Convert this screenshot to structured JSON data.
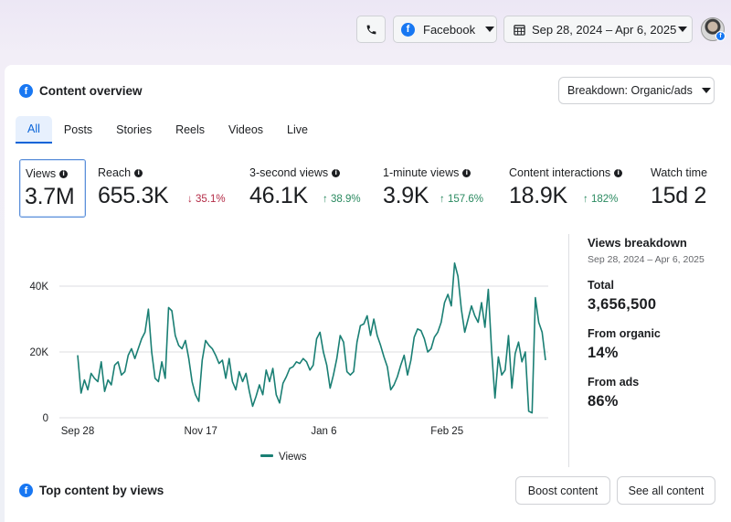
{
  "topbar": {
    "platform_label": "Facebook",
    "date_range": "Sep 28, 2024 – Apr 6, 2025",
    "icons": [
      "phone-icon",
      "facebook-icon",
      "calendar-icon",
      "caret-down-icon",
      "avatar"
    ]
  },
  "overview": {
    "title": "Content overview",
    "breakdown_label": "Breakdown: Organic/ads"
  },
  "tabs": [
    {
      "label": "All",
      "active": true
    },
    {
      "label": "Posts"
    },
    {
      "label": "Stories"
    },
    {
      "label": "Reels"
    },
    {
      "label": "Videos"
    },
    {
      "label": "Live"
    }
  ],
  "metrics": [
    {
      "label": "Views",
      "value": "3.7M",
      "change": "",
      "selected": true
    },
    {
      "label": "Reach",
      "value": "655.3K",
      "change": "35.1%",
      "direction": "down"
    },
    {
      "label": "3-second views",
      "value": "46.1K",
      "change": "38.9%",
      "direction": "up"
    },
    {
      "label": "1-minute views",
      "value": "3.9K",
      "change": "157.6%",
      "direction": "up"
    },
    {
      "label": "Content interactions",
      "value": "18.9K",
      "change": "182%",
      "direction": "up"
    },
    {
      "label": "Watch time",
      "value": "15d 2",
      "change": ""
    }
  ],
  "chart_data": {
    "type": "line",
    "title": "",
    "xlabel": "",
    "ylabel": "",
    "x_tick_labels": [
      "Sep 28",
      "Nov 17",
      "Jan 6",
      "Feb 25"
    ],
    "y_tick_labels": [
      "0",
      "20K",
      "40K"
    ],
    "ylim": [
      0,
      50000
    ],
    "grid": "horizontal",
    "legend": "bottom-center",
    "series": [
      {
        "name": "Views",
        "color": "#1a7f74",
        "x_start": "2024-09-28",
        "x_end": "2025-04-06",
        "values": [
          19000,
          7500,
          11500,
          8500,
          13500,
          12000,
          11000,
          17000,
          8000,
          11500,
          10000,
          16000,
          17000,
          13000,
          14000,
          19000,
          21000,
          18000,
          21000,
          24000,
          26000,
          33000,
          20000,
          12000,
          11000,
          17000,
          12000,
          33500,
          32500,
          25000,
          22000,
          21000,
          23500,
          18000,
          11000,
          7000,
          5000,
          17500,
          23500,
          22000,
          21000,
          19000,
          16500,
          17500,
          12000,
          18000,
          11000,
          8500,
          14000,
          11000,
          13500,
          8000,
          3500,
          6500,
          10000,
          7000,
          14500,
          11000,
          15000,
          7000,
          4500,
          10500,
          12500,
          15000,
          15500,
          17000,
          16500,
          18000,
          17000,
          14500,
          16000,
          24000,
          26000,
          20000,
          16000,
          9000,
          13000,
          18000,
          25000,
          23000,
          14000,
          13000,
          14000,
          23000,
          28000,
          28500,
          31000,
          25000,
          30000,
          25000,
          22000,
          18500,
          15500,
          8500,
          10000,
          12500,
          16000,
          19000,
          13000,
          17500,
          24500,
          27000,
          26500,
          24000,
          20000,
          21000,
          24500,
          26000,
          29000,
          35000,
          37500,
          34000,
          47000,
          43000,
          33000,
          26000,
          30000,
          34000,
          31000,
          29000,
          35000,
          27500,
          39000,
          20000,
          6000,
          18500,
          13000,
          14500,
          25000,
          9000,
          19500,
          23000,
          17000,
          20000,
          2000,
          1500,
          36500,
          29000,
          26000,
          17500
        ]
      }
    ],
    "legend_entries": [
      "Views"
    ]
  },
  "views_breakdown": {
    "title": "Views breakdown",
    "date": "Sep 28, 2024 – Apr 6, 2025",
    "total_label": "Total",
    "total_value": "3,656,500",
    "organic_label": "From organic",
    "organic_value": "14%",
    "ads_label": "From ads",
    "ads_value": "86%"
  },
  "bottom": {
    "title": "Top content by views",
    "boost_label": "Boost content",
    "see_all_label": "See all content"
  }
}
